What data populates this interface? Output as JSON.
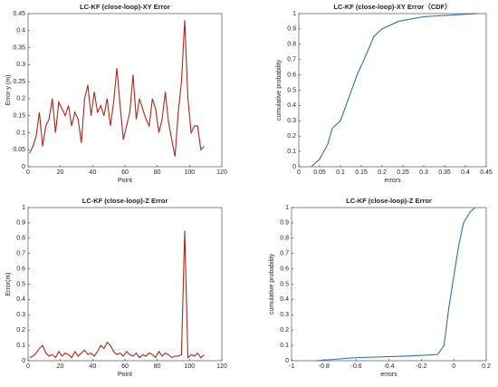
{
  "chart_data": [
    {
      "type": "line",
      "title": "LC-KF (close-loop)-XY Error",
      "xlabel": "Point",
      "ylabel": "Error-y (m)",
      "xlim": [
        0,
        120
      ],
      "xticks": [
        0,
        20,
        40,
        60,
        80,
        100,
        120
      ],
      "ylim": [
        0,
        0.45
      ],
      "yticks": [
        0,
        0.05,
        0.1,
        0.15,
        0.2,
        0.25,
        0.3,
        0.35,
        0.4,
        0.45
      ],
      "color": "#b0261a",
      "x": [
        1,
        3,
        5,
        7,
        9,
        11,
        13,
        15,
        17,
        19,
        21,
        23,
        25,
        27,
        29,
        31,
        33,
        35,
        37,
        39,
        41,
        43,
        45,
        47,
        49,
        51,
        53,
        55,
        57,
        59,
        61,
        63,
        65,
        67,
        69,
        71,
        73,
        75,
        77,
        79,
        81,
        83,
        85,
        87,
        89,
        91,
        93,
        95,
        97,
        99,
        101,
        103,
        105,
        107,
        109
      ],
      "values": [
        0.04,
        0.06,
        0.09,
        0.16,
        0.06,
        0.12,
        0.14,
        0.2,
        0.1,
        0.19,
        0.17,
        0.15,
        0.18,
        0.12,
        0.16,
        0.14,
        0.07,
        0.2,
        0.24,
        0.15,
        0.22,
        0.16,
        0.18,
        0.15,
        0.2,
        0.12,
        0.19,
        0.29,
        0.18,
        0.08,
        0.12,
        0.16,
        0.27,
        0.14,
        0.2,
        0.17,
        0.14,
        0.12,
        0.2,
        0.17,
        0.1,
        0.14,
        0.22,
        0.13,
        0.08,
        0.03,
        0.16,
        0.25,
        0.43,
        0.2,
        0.1,
        0.12,
        0.12,
        0.05,
        0.06
      ]
    },
    {
      "type": "line",
      "title": "LC-KF (close-loop)-XY Error（CDF）",
      "xlabel": "errors",
      "ylabel": "cumulative probability",
      "xlim": [
        0,
        0.45
      ],
      "xticks": [
        0,
        0.05,
        0.1,
        0.15,
        0.2,
        0.25,
        0.3,
        0.35,
        0.4,
        0.45
      ],
      "ylim": [
        0,
        1
      ],
      "yticks": [
        0,
        0.1,
        0.2,
        0.3,
        0.4,
        0.5,
        0.6,
        0.7,
        0.8,
        0.9,
        1
      ],
      "color": "#2f6fb0",
      "x": [
        0.03,
        0.05,
        0.07,
        0.08,
        0.1,
        0.12,
        0.14,
        0.16,
        0.18,
        0.2,
        0.24,
        0.3,
        0.43
      ],
      "values": [
        0,
        0.05,
        0.15,
        0.25,
        0.3,
        0.45,
        0.6,
        0.72,
        0.85,
        0.9,
        0.95,
        0.98,
        1
      ]
    },
    {
      "type": "line",
      "title": "LC-KF (close-loop)-Z Error",
      "xlabel": "Point",
      "ylabel": "Error(m)",
      "xlim": [
        0,
        120
      ],
      "xticks": [
        0,
        20,
        40,
        60,
        80,
        100,
        120
      ],
      "ylim": [
        0,
        1
      ],
      "yticks": [
        0,
        0.1,
        0.2,
        0.3,
        0.4,
        0.5,
        0.6,
        0.7,
        0.8,
        0.9,
        1
      ],
      "color": "#b0261a",
      "x": [
        1,
        3,
        5,
        7,
        9,
        11,
        13,
        15,
        17,
        19,
        21,
        23,
        25,
        27,
        29,
        31,
        33,
        35,
        37,
        39,
        41,
        43,
        45,
        47,
        49,
        51,
        53,
        55,
        57,
        59,
        61,
        63,
        65,
        67,
        69,
        71,
        73,
        75,
        77,
        79,
        81,
        83,
        85,
        87,
        89,
        91,
        93,
        95,
        97,
        99,
        101,
        103,
        105,
        107,
        109
      ],
      "values": [
        0.02,
        0.03,
        0.05,
        0.08,
        0.1,
        0.05,
        0.03,
        0.04,
        0.02,
        0.06,
        0.03,
        0.05,
        0.04,
        0.02,
        0.06,
        0.03,
        0.05,
        0.07,
        0.04,
        0.05,
        0.03,
        0.06,
        0.1,
        0.08,
        0.12,
        0.1,
        0.06,
        0.04,
        0.05,
        0.03,
        0.06,
        0.04,
        0.03,
        0.05,
        0.02,
        0.04,
        0.03,
        0.05,
        0.04,
        0.02,
        0.06,
        0.03,
        0.05,
        0.04,
        0.02,
        0.03,
        0.03,
        0.04,
        0.85,
        0.02,
        0.04,
        0.03,
        0.05,
        0.02,
        0.04
      ]
    },
    {
      "type": "line",
      "title": "LC-KF (close-loop)-Z Error",
      "xlabel": "errors",
      "ylabel": "cumulative probability",
      "xlim": [
        -1,
        0.2
      ],
      "xticks": [
        -1,
        -0.8,
        -0.6,
        -0.4,
        -0.2,
        0,
        0.2
      ],
      "ylim": [
        0,
        1
      ],
      "yticks": [
        0,
        0.1,
        0.2,
        0.3,
        0.4,
        0.5,
        0.6,
        0.7,
        0.8,
        0.9,
        1
      ],
      "color": "#2f6fb0",
      "x": [
        -0.85,
        -0.6,
        -0.3,
        -0.1,
        -0.06,
        -0.03,
        0,
        0.03,
        0.06,
        0.1,
        0.13
      ],
      "values": [
        0,
        0.02,
        0.03,
        0.04,
        0.1,
        0.35,
        0.55,
        0.75,
        0.9,
        0.97,
        1
      ]
    }
  ]
}
